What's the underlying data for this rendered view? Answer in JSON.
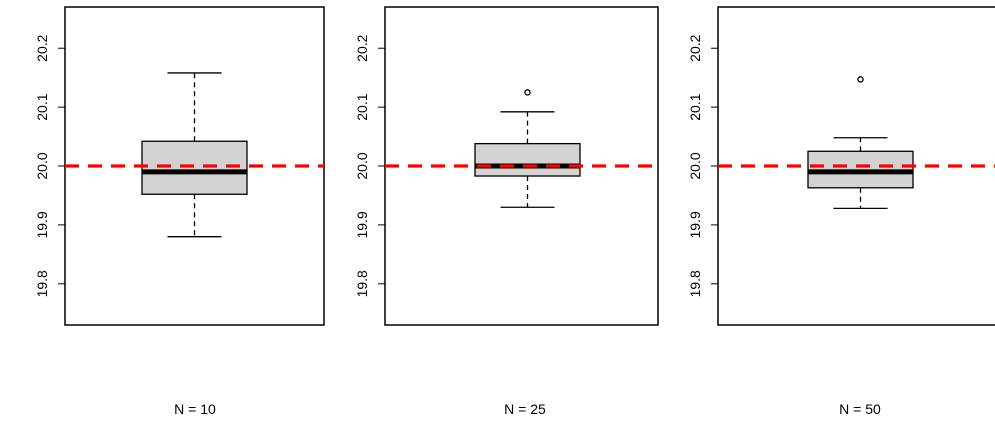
{
  "chart_data": [
    {
      "type": "boxplot",
      "xlabel": "N = 10",
      "ylim": [
        19.73,
        20.27
      ],
      "yticks": [
        19.8,
        19.9,
        20.0,
        20.1,
        20.2
      ],
      "box": {
        "min": 19.88,
        "q1": 19.952,
        "median": 19.99,
        "q3": 20.042,
        "max": 20.158
      },
      "outliers": [],
      "reference_line": 20.0,
      "reference_color": "#ff0000",
      "box_fill": "#d3d3d3"
    },
    {
      "type": "boxplot",
      "xlabel": "N = 25",
      "ylim": [
        19.73,
        20.27
      ],
      "yticks": [
        19.8,
        19.9,
        20.0,
        20.1,
        20.2
      ],
      "box": {
        "min": 19.93,
        "q1": 19.983,
        "median": 20.0,
        "q3": 20.038,
        "max": 20.092
      },
      "outliers": [
        20.125
      ],
      "reference_line": 20.0,
      "reference_color": "#ff0000",
      "box_fill": "#d3d3d3"
    },
    {
      "type": "boxplot",
      "xlabel": "N = 50",
      "ylim": [
        19.73,
        20.27
      ],
      "yticks": [
        19.8,
        19.9,
        20.0,
        20.1,
        20.2
      ],
      "box": {
        "min": 19.928,
        "q1": 19.963,
        "median": 19.99,
        "q3": 20.025,
        "max": 20.048
      },
      "outliers": [
        20.147
      ],
      "reference_line": 20.0,
      "reference_color": "#ff0000",
      "box_fill": "#d3d3d3"
    }
  ]
}
